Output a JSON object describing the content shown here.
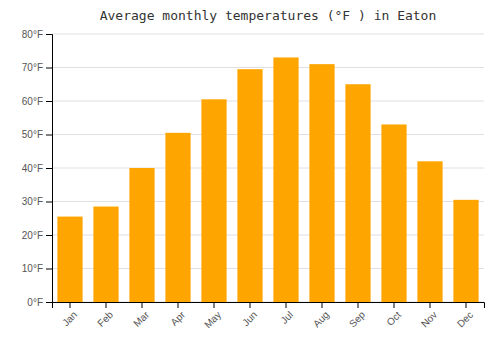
{
  "chart_data": {
    "type": "bar",
    "title": "Average monthly temperatures (°F ) in Eaton",
    "categories": [
      "Jan",
      "Feb",
      "Mar",
      "Apr",
      "May",
      "Jun",
      "Jul",
      "Aug",
      "Sep",
      "Oct",
      "Nov",
      "Dec"
    ],
    "values": [
      25.5,
      28.5,
      40.0,
      50.5,
      60.5,
      69.5,
      73.0,
      71.0,
      65.0,
      53.0,
      42.0,
      30.5
    ],
    "color": "#FFA500",
    "ylim": [
      0,
      80
    ],
    "yticks": [
      {
        "value": 0,
        "label": "0°F"
      },
      {
        "value": 10,
        "label": "10°F"
      },
      {
        "value": 20,
        "label": "20°F"
      },
      {
        "value": 30,
        "label": "30°F"
      },
      {
        "value": 40,
        "label": "40°F"
      },
      {
        "value": 50,
        "label": "50°F"
      },
      {
        "value": 60,
        "label": "60°F"
      },
      {
        "value": 70,
        "label": "70°F"
      },
      {
        "value": 80,
        "label": "80°F"
      }
    ],
    "grid": true
  }
}
